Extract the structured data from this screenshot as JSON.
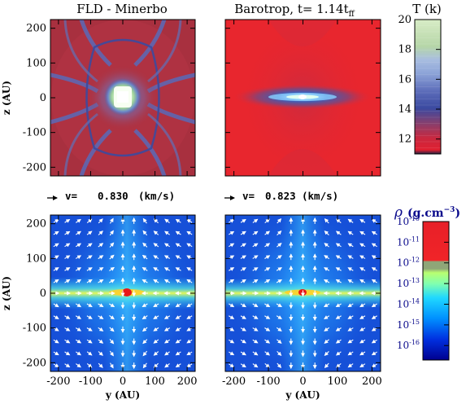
{
  "panels": [
    {
      "title": "FLD - Minerbo",
      "row": "top",
      "quantity": "temperature"
    },
    {
      "title_main": "Barotrop, t= 1.14t",
      "title_sub": "ff",
      "row": "top",
      "quantity": "temperature"
    },
    {
      "row": "bottom",
      "quantity": "density",
      "velocity_label": "v=",
      "velocity_value": "0.830",
      "velocity_unit": "(km/s)"
    },
    {
      "row": "bottom",
      "quantity": "density",
      "velocity_label": "v=",
      "velocity_value": "0.823",
      "velocity_unit": "(km/s)"
    }
  ],
  "axes": {
    "xlabel": "y (AU)",
    "ylabel": "z (AU)",
    "xlim": [
      -225,
      225
    ],
    "ylim": [
      -225,
      225
    ],
    "xticks": [
      "-200",
      "-100",
      "0",
      "100",
      "200"
    ],
    "xtick_values": [
      -200,
      -100,
      0,
      100,
      200
    ],
    "yticks": [
      "200",
      "100",
      "0",
      "-100",
      "-200"
    ],
    "ytick_values": [
      200,
      100,
      0,
      -100,
      -200
    ]
  },
  "colorbars": {
    "temperature": {
      "label": "T (k)",
      "range": [
        11,
        20
      ],
      "ticks": [
        "20",
        "18",
        "16",
        "14",
        "12"
      ],
      "tick_values": [
        20,
        18,
        16,
        14,
        12
      ]
    },
    "density": {
      "label_symbol": "ρ",
      "label_unit": "(g.cm",
      "label_exp": "−3",
      "label_close": ")",
      "range_log": [
        -16.7,
        -10
      ],
      "ticks": [
        {
          "base": "10",
          "exp": "-10",
          "value": -10
        },
        {
          "base": "10",
          "exp": "-11",
          "value": -11
        },
        {
          "base": "10",
          "exp": "-12",
          "value": -12
        },
        {
          "base": "10",
          "exp": "-13",
          "value": -13
        },
        {
          "base": "10",
          "exp": "-14",
          "value": -14
        },
        {
          "base": "10",
          "exp": "-15",
          "value": -15
        },
        {
          "base": "10",
          "exp": "-16",
          "value": -16
        }
      ]
    }
  },
  "colors": {
    "temp_background_fld": "#a8303f",
    "temp_background_baro": "#e8262e",
    "density_background": "#1650d8",
    "arrow": "#ffffff"
  },
  "chart_data": [
    {
      "type": "heatmap",
      "title": "FLD - Minerbo",
      "xlabel": "",
      "ylabel": "z (AU)",
      "xlim": [
        -225,
        225
      ],
      "ylim": [
        -225,
        225
      ],
      "colorbar": "temperature"
    },
    {
      "type": "heatmap",
      "title": "Barotrop, t= 1.14tff",
      "xlabel": "",
      "ylabel": "",
      "xlim": [
        -225,
        225
      ],
      "ylim": [
        -225,
        225
      ],
      "colorbar": "temperature"
    },
    {
      "type": "heatmap",
      "title": "",
      "xlabel": "y (AU)",
      "ylabel": "z (AU)",
      "xlim": [
        -225,
        225
      ],
      "ylim": [
        -225,
        225
      ],
      "colorbar": "density",
      "velocity_reference_kms": 0.83
    },
    {
      "type": "heatmap",
      "title": "",
      "xlabel": "y (AU)",
      "ylabel": "",
      "xlim": [
        -225,
        225
      ],
      "ylim": [
        -225,
        225
      ],
      "colorbar": "density",
      "velocity_reference_kms": 0.823
    }
  ]
}
